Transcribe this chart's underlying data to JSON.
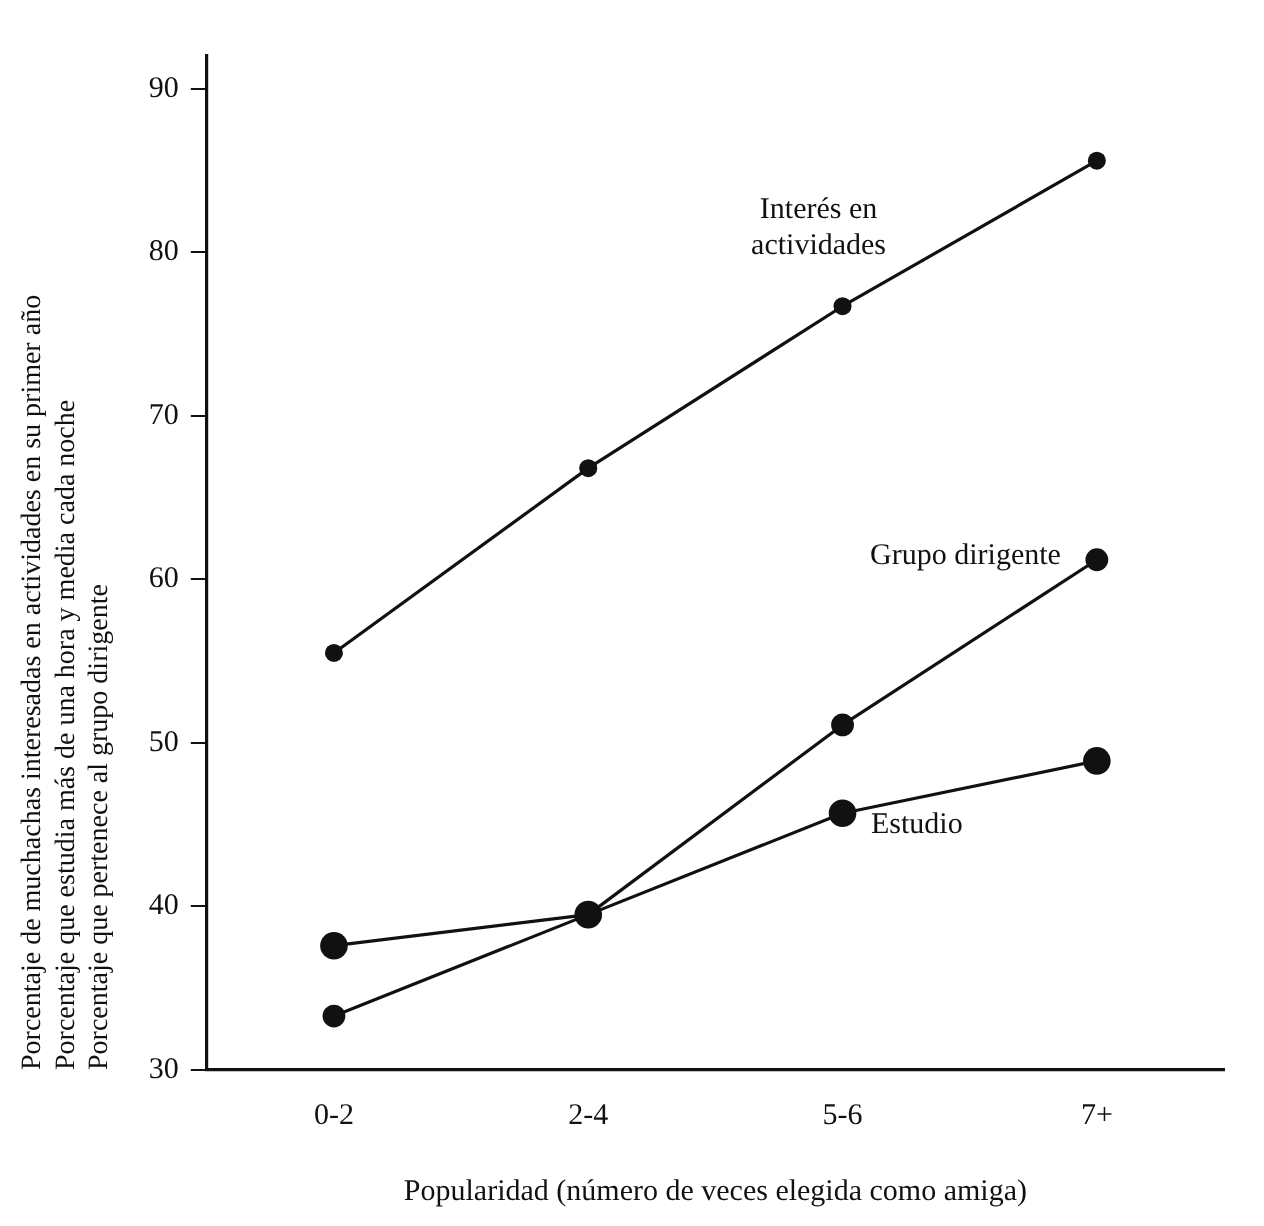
{
  "chart_data": {
    "type": "line",
    "xlabel": "Popularidad (número de veces elegida como amiga)",
    "ylabel": "Porcentaje de muchachas interesadas en actividades en su primer año\nPorcentaje que estudia más de una hora y media cada noche\nPorcentaje que pertenece al grupo dirigente",
    "categories": [
      "0-2",
      "2-4",
      "5-6",
      "7+"
    ],
    "series": [
      {
        "name": "Interés en actividades",
        "color": "#111111",
        "values": [
          55.5,
          66.8,
          76.7,
          85.6
        ]
      },
      {
        "name": "Grupo dirigente",
        "color": "#111111",
        "values": [
          33.3,
          39.5,
          51.1,
          61.2
        ]
      },
      {
        "name": "Estudio",
        "color": "#111111",
        "values": [
          37.6,
          39.5,
          45.7,
          48.9
        ]
      }
    ],
    "ylim": [
      30,
      92
    ],
    "yticks": [
      30,
      40,
      50,
      60,
      70,
      80,
      90
    ],
    "grid": false,
    "legend": false,
    "marker": "circle",
    "line_style": "solid"
  }
}
